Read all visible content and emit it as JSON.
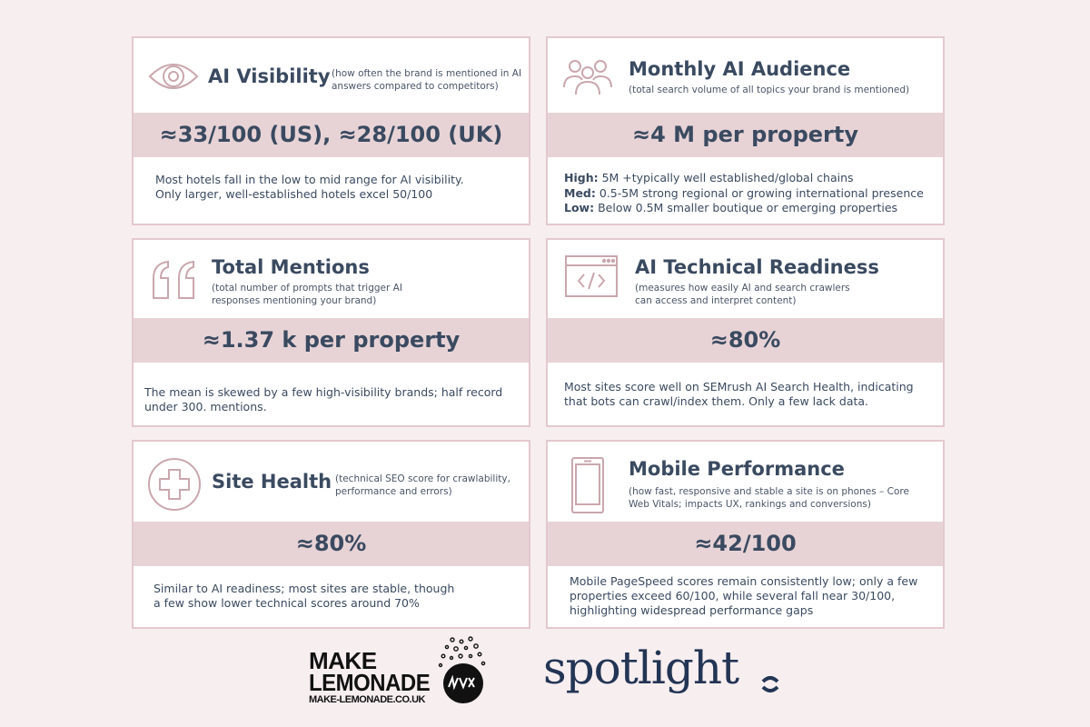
{
  "cards": [
    {
      "title": "AI Visibility",
      "subtitle": "(how often the brand is mentioned in AI answers compared to competitors)",
      "value": "≈33/100 (US), ≈28/100 (UK)",
      "desc_lines": [
        "Most hotels fall in the low to mid range for AI visibility.",
        "Only larger, well-established hotels excel 50/100"
      ],
      "icon": "eye-icon"
    },
    {
      "title": "Monthly AI Audience",
      "subtitle": "(total search volume of all topics your brand is mentioned)",
      "value": "≈4 M per property",
      "tiers": [
        {
          "label": "High:",
          "text": "5M +typically well established/global chains"
        },
        {
          "label": "Med:",
          "text": "0.5-5M strong regional or growing international presence"
        },
        {
          "label": "Low:",
          "text": "Below 0.5M smaller boutique or emerging properties"
        }
      ],
      "icon": "audience-icon"
    },
    {
      "title": "Total Mentions",
      "subtitle": "(total number of prompts that trigger AI responses mentioning your brand)",
      "value": "≈1.37 k per property",
      "desc_lines": [
        "The mean is skewed by a few high-visibility brands; half record",
        "under 300. mentions."
      ],
      "icon": "quote-icon"
    },
    {
      "title": "AI Technical Readiness",
      "subtitle": "(measures how easily AI and search crawlers can access and interpret content)",
      "value": "≈80%",
      "desc_lines": [
        "Most sites score well on SEMrush AI Search Health, indicating",
        "that bots can crawl/index them. Only a few lack data."
      ],
      "icon": "code-window-icon"
    },
    {
      "title": "Site Health",
      "subtitle": "(technical SEO score for crawlability, performance and errors)",
      "value": "≈80%",
      "desc_lines": [
        "Similar to AI readiness; most sites are stable, though",
        "a few show lower technical scores around 70%"
      ],
      "icon": "health-cross-icon"
    },
    {
      "title": "Mobile Performance",
      "subtitle": "(how fast, responsive and stable a site is on phones – Core Web Vitals; impacts UX, rankings and conversions)",
      "value": "≈42/100",
      "desc_lines": [
        "Mobile PageSpeed scores remain consistently low; only a few",
        "properties exceed 60/100, while several fall near 30/100,",
        "highlighting widespread performance gaps"
      ],
      "icon": "mobile-phone-icon"
    }
  ],
  "logos": {
    "make_lemonade": {
      "line1": "MAKE",
      "line2": "LEMONADE",
      "url": "MAKE-LEMONADE.CO.UK"
    },
    "spotlight": {
      "word": "spotlight"
    }
  },
  "colors": {
    "background": "#f7eef0",
    "card_border": "#e3c9ce",
    "band": "#e7d3d6",
    "text": "#3a4a60",
    "icon_stroke": "#c9a7ad",
    "spotlight": "#233554"
  }
}
